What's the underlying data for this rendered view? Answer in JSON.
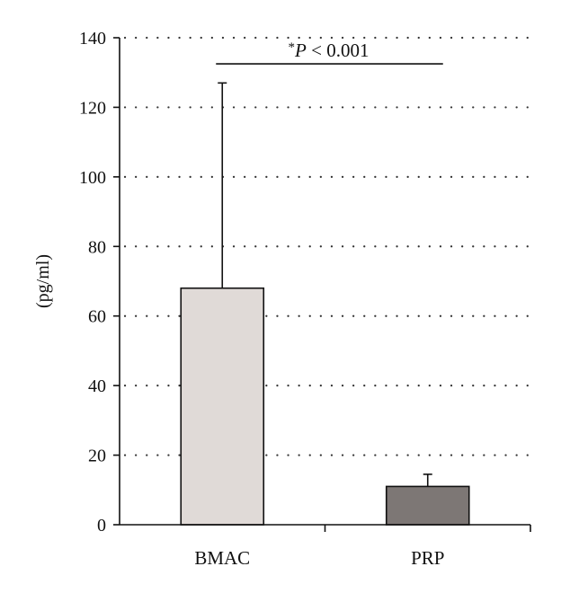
{
  "chart_data": {
    "type": "bar",
    "categories": [
      "BMAC",
      "PRP"
    ],
    "values": [
      68,
      11
    ],
    "error_upper": [
      127,
      14.5
    ],
    "ylabel": "(pg/ml)",
    "xlabel": "",
    "ylim": [
      0,
      140
    ],
    "yticks": [
      0,
      20,
      40,
      60,
      80,
      100,
      120,
      140
    ],
    "yticklabels": [
      "0",
      "20",
      "40",
      "60",
      "80",
      "100",
      "120",
      "140"
    ],
    "grid": "horizontal dotted",
    "bar_colors": [
      "#e0dad7",
      "#7d7775"
    ],
    "annotation": {
      "star": "*",
      "p": "P",
      "rest": " < 0.001",
      "y_value": 132.5
    }
  }
}
